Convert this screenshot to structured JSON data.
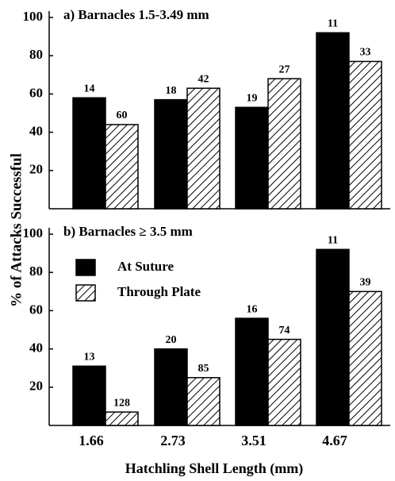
{
  "y_label": "% of Attacks Successful",
  "x_label": "Hatchling Shell Length (mm)",
  "categories": [
    "1.66",
    "2.73",
    "3.51",
    "4.67"
  ],
  "chart_data": [
    {
      "type": "bar",
      "title": "a)  Barnacles 1.5-3.49 mm",
      "ylim": [
        0,
        100
      ],
      "yticks": [
        20,
        40,
        60,
        80,
        100
      ],
      "series": [
        {
          "color": "#000000",
          "pattern": "solid",
          "values": [
            58,
            57,
            53,
            92
          ],
          "sample_sizes": [
            14,
            18,
            19,
            11
          ]
        },
        {
          "color": "#000000",
          "pattern": "hatch",
          "values": [
            44,
            63,
            68,
            77
          ],
          "sample_sizes": [
            60,
            42,
            27,
            33
          ]
        }
      ]
    },
    {
      "type": "bar",
      "title": "b)  Barnacles  ≥ 3.5 mm",
      "ylim": [
        0,
        100
      ],
      "yticks": [
        20,
        40,
        60,
        80,
        100
      ],
      "legend": "upper left",
      "series": [
        {
          "name": "At Suture",
          "color": "#000000",
          "pattern": "solid",
          "values": [
            31,
            40,
            56,
            92
          ],
          "sample_sizes": [
            13,
            20,
            16,
            11
          ]
        },
        {
          "name": "Through Plate",
          "color": "#000000",
          "pattern": "hatch",
          "values": [
            7,
            25,
            45,
            70
          ],
          "sample_sizes": [
            128,
            85,
            74,
            39
          ]
        }
      ]
    }
  ]
}
